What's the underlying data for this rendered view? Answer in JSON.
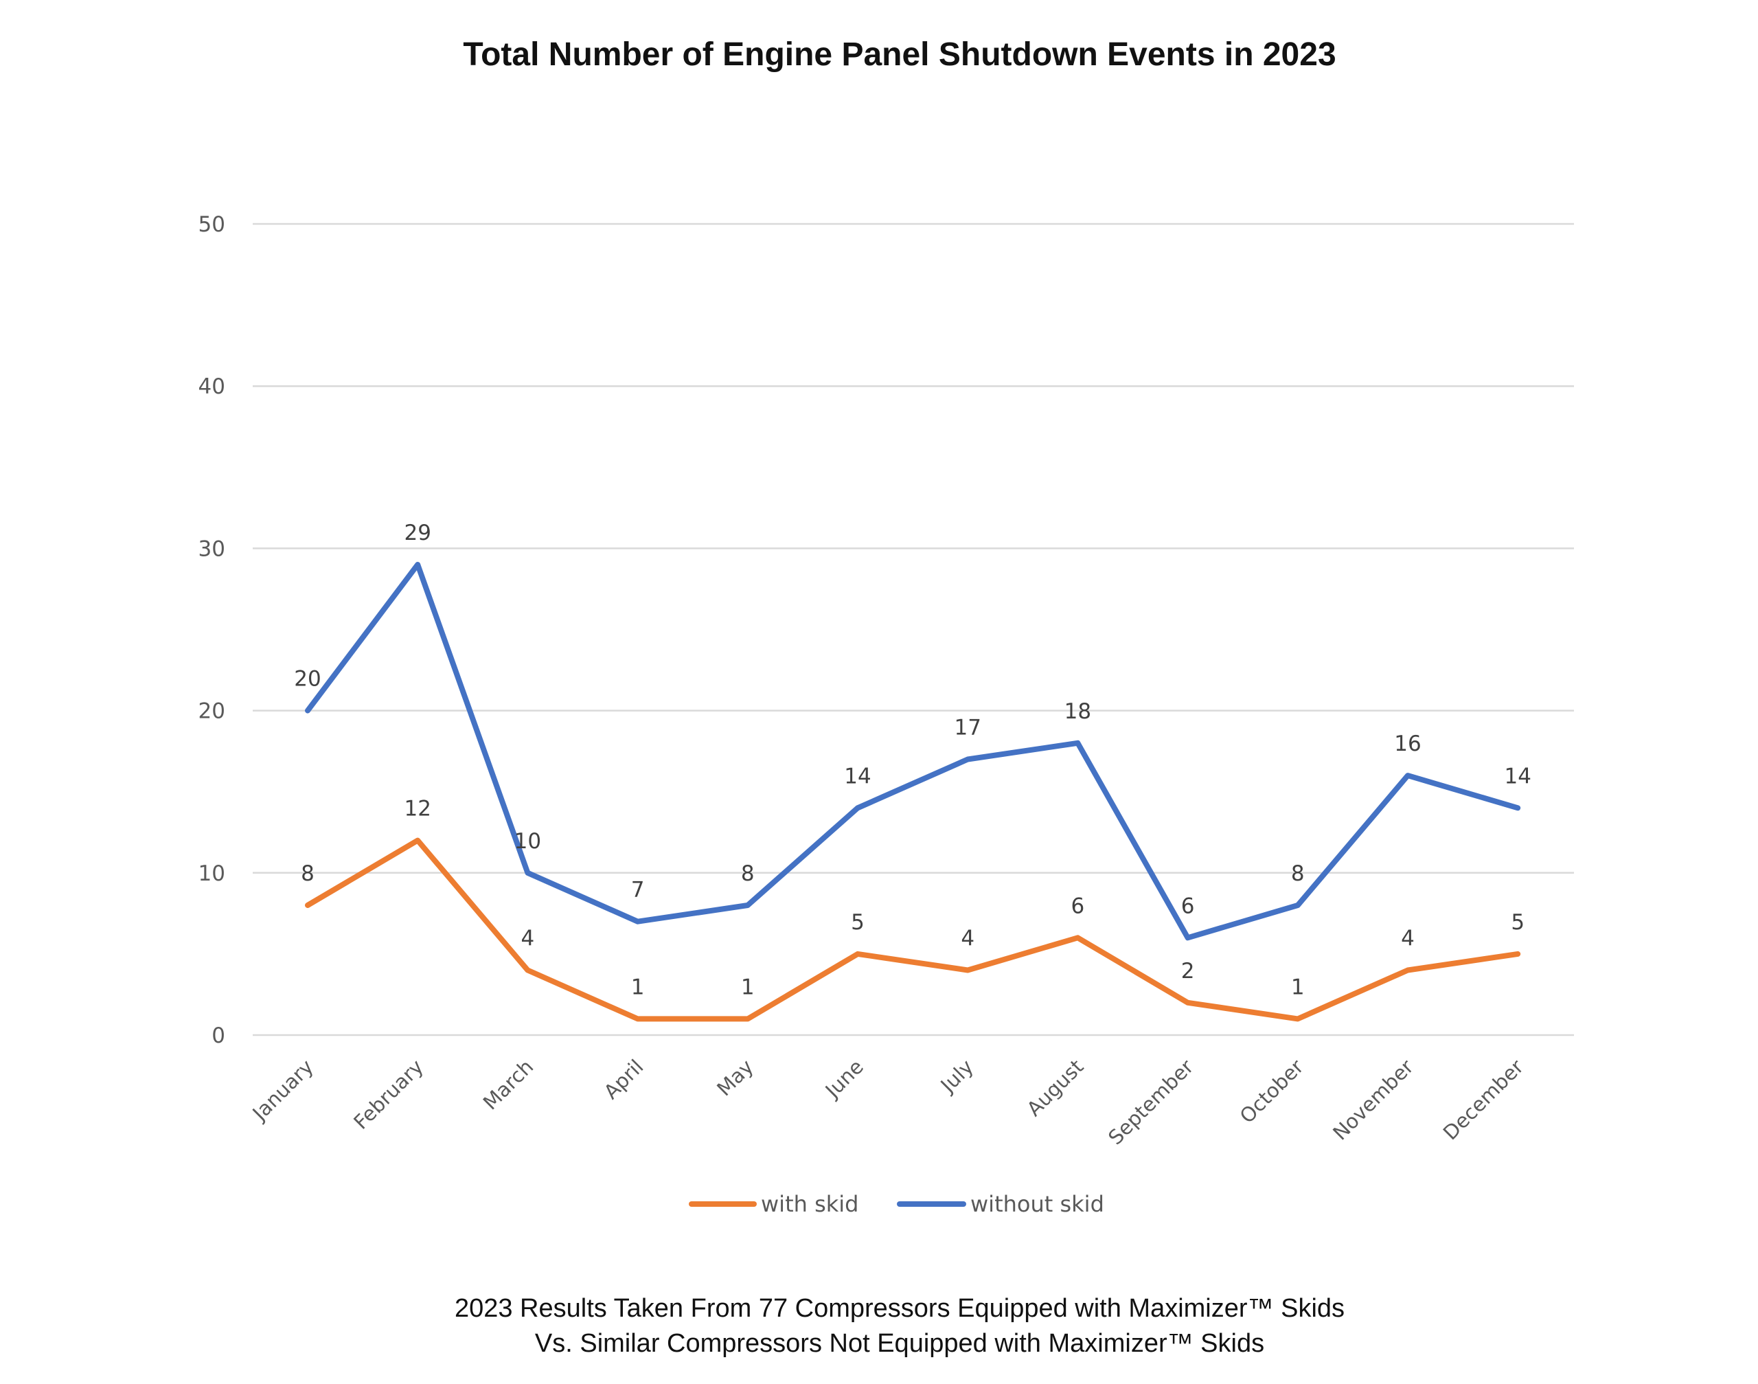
{
  "chart_data": {
    "type": "line",
    "title": "Total Number of Engine Panel Shutdown Events in 2023",
    "xlabel": "",
    "ylabel": "",
    "ylim": [
      0,
      50
    ],
    "yticks": [
      "0",
      "10",
      "20",
      "30",
      "40",
      "50"
    ],
    "grid": true,
    "legend_position": "bottom",
    "categories": [
      "January",
      "February",
      "March",
      "April",
      "May",
      "June",
      "July",
      "August",
      "September",
      "October",
      "November",
      "December"
    ],
    "series": [
      {
        "name": "with skid",
        "color": "#ed7d31",
        "values": [
          8,
          12,
          4,
          1,
          1,
          5,
          4,
          6,
          2,
          1,
          4,
          5
        ]
      },
      {
        "name": "without skid",
        "color": "#4472c4",
        "values": [
          20,
          29,
          10,
          7,
          8,
          14,
          17,
          18,
          6,
          8,
          16,
          14
        ]
      }
    ]
  },
  "footnote": {
    "line1": "2023 Results Taken From 77 Compressors Equipped with Maximizer™ Skids",
    "line2": "Vs. Similar Compressors Not Equipped with Maximizer™ Skids"
  }
}
